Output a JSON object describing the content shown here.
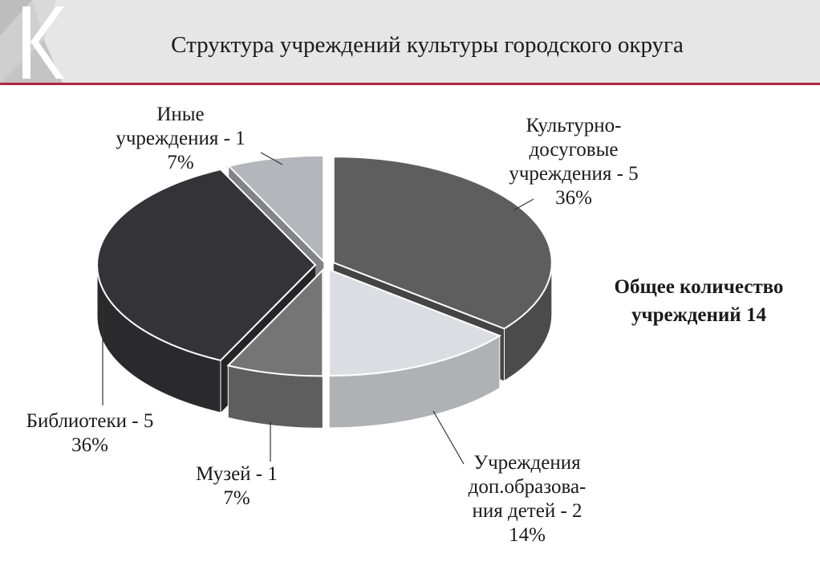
{
  "header": {
    "title": "Структура учреждений культуры городского округа"
  },
  "summary": {
    "line1": "Общее количество",
    "line2": "учреждений  14"
  },
  "chart_data": {
    "type": "pie",
    "title": "Структура учреждений культуры городского округа",
    "total": 14,
    "slices": [
      {
        "label_lines": [
          "Культурно-",
          "досуговые",
          "учреждения - 5",
          "36%"
        ],
        "value": 5,
        "percent": 36,
        "color": "#5e5e5e"
      },
      {
        "label_lines": [
          "Учреждения",
          "доп.образова-",
          "ния детей - 2",
          "14%"
        ],
        "value": 2,
        "percent": 14,
        "color": "#dcdde2"
      },
      {
        "label_lines": [
          "Музей - 1",
          "7%"
        ],
        "value": 1,
        "percent": 7,
        "color": "#757575"
      },
      {
        "label_lines": [
          "Библиотеки - 5",
          "36%"
        ],
        "value": 5,
        "percent": 36,
        "color": "#343438"
      },
      {
        "label_lines": [
          "Иные",
          "учреждения - 1",
          "7%"
        ],
        "value": 1,
        "percent": 7,
        "color": "#b5b6bb"
      }
    ]
  }
}
